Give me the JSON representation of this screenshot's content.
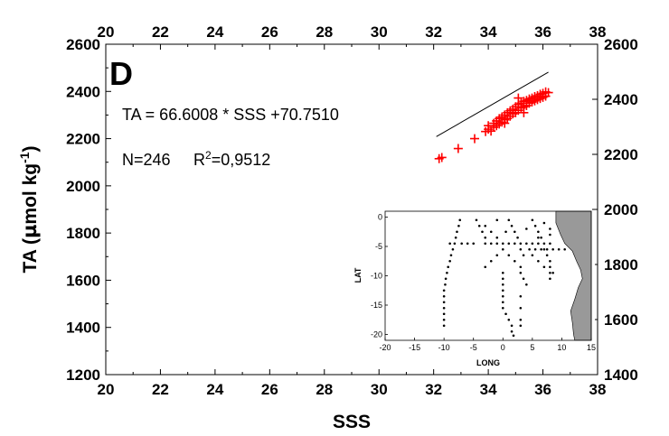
{
  "chart_data": [
    {
      "type": "scatter",
      "panel_label": "D",
      "xlabel": "SSS",
      "ylabel": "TA (µmol kg-1)",
      "ylabel_main": "TA (",
      "ylabel_mu": "µ",
      "ylabel_unit": "mol kg",
      "ylabel_exp": "-1",
      "ylabel_close": ")",
      "xlim": [
        20,
        38
      ],
      "ylim": [
        1200,
        2600
      ],
      "xticks": [
        "20",
        "22",
        "24",
        "26",
        "28",
        "30",
        "32",
        "34",
        "36",
        "38"
      ],
      "yticks_left": [
        "1200",
        "1400",
        "1600",
        "1800",
        "2000",
        "2200",
        "2400",
        "2600"
      ],
      "yticks_right": [
        "1400",
        "1600",
        "1800",
        "2000",
        "2200",
        "2400",
        "2600"
      ],
      "annotations": {
        "equation": "TA = 66.6008 * SSS +70.7510",
        "n_label": "N=246",
        "r2_prefix": "R",
        "r2_exp": "2",
        "r2_value": "=0,9512"
      },
      "regression": {
        "slope": 66.6008,
        "intercept": 70.751,
        "x_range": [
          32.1,
          36.2
        ]
      },
      "marker_color": "#ff0000",
      "line_color": "#000000",
      "series": [
        {
          "marker": "plus",
          "points": [
            [
              32.2,
              2115
            ],
            [
              32.3,
              2120
            ],
            [
              32.9,
              2158
            ],
            [
              33.5,
              2200
            ],
            [
              33.9,
              2230
            ],
            [
              34.0,
              2240
            ],
            [
              34.0,
              2255
            ],
            [
              34.1,
              2232
            ],
            [
              34.2,
              2248
            ],
            [
              34.2,
              2265
            ],
            [
              34.3,
              2255
            ],
            [
              34.3,
              2275
            ],
            [
              34.4,
              2262
            ],
            [
              34.4,
              2285
            ],
            [
              34.5,
              2270
            ],
            [
              34.5,
              2292
            ],
            [
              34.6,
              2280
            ],
            [
              34.6,
              2300
            ],
            [
              34.7,
              2285
            ],
            [
              34.7,
              2310
            ],
            [
              34.8,
              2295
            ],
            [
              34.8,
              2318
            ],
            [
              34.9,
              2305
            ],
            [
              34.9,
              2325
            ],
            [
              35.0,
              2310
            ],
            [
              35.0,
              2335
            ],
            [
              35.1,
              2320
            ],
            [
              35.1,
              2345
            ],
            [
              35.2,
              2330
            ],
            [
              35.2,
              2350
            ],
            [
              35.3,
              2335
            ],
            [
              35.3,
              2358
            ],
            [
              35.4,
              2340
            ],
            [
              35.4,
              2362
            ],
            [
              35.5,
              2350
            ],
            [
              35.5,
              2368
            ],
            [
              35.6,
              2355
            ],
            [
              35.6,
              2372
            ],
            [
              35.7,
              2360
            ],
            [
              35.7,
              2378
            ],
            [
              35.8,
              2365
            ],
            [
              35.8,
              2382
            ],
            [
              35.9,
              2370
            ],
            [
              35.9,
              2388
            ],
            [
              36.0,
              2375
            ],
            [
              36.0,
              2392
            ],
            [
              36.1,
              2380
            ],
            [
              36.1,
              2398
            ],
            [
              35.1,
              2372
            ],
            [
              36.2,
              2395
            ],
            [
              34.6,
              2265
            ],
            [
              35.3,
              2310
            ]
          ]
        }
      ]
    },
    {
      "type": "scatter",
      "xlabel": "LONG",
      "ylabel": "LAT",
      "xlim": [
        -20,
        15
      ],
      "ylim": [
        -21,
        1
      ],
      "xticks": [
        "-20",
        "-15",
        "-10",
        "-5",
        "0",
        "5",
        "10",
        "15"
      ],
      "yticks": [
        "0",
        "-5",
        "-10",
        "-15",
        "-20"
      ],
      "land_color": "#999999",
      "coastline": [
        [
          9,
          0.5
        ],
        [
          9,
          -1
        ],
        [
          9.8,
          -3
        ],
        [
          10.5,
          -4.5
        ],
        [
          11.8,
          -5.8
        ],
        [
          12.5,
          -7.5
        ],
        [
          13.2,
          -9
        ],
        [
          13.5,
          -10.5
        ],
        [
          12.8,
          -12
        ],
        [
          12.2,
          -14
        ],
        [
          11.5,
          -16
        ],
        [
          11.8,
          -18
        ],
        [
          12,
          -20
        ],
        [
          12.2,
          -21
        ]
      ],
      "stations": [
        [
          -10,
          -18.5
        ],
        [
          -10,
          -17.5
        ],
        [
          -10,
          -16.5
        ],
        [
          -10,
          -15.5
        ],
        [
          -10,
          -14.5
        ],
        [
          -10,
          -13.5
        ],
        [
          -10,
          -12.5
        ],
        [
          -9.8,
          -11.5
        ],
        [
          -9.7,
          -10.5
        ],
        [
          -9.5,
          -9.5
        ],
        [
          -9.3,
          -8.5
        ],
        [
          -9,
          -7.5
        ],
        [
          -8.8,
          -6.5
        ],
        [
          -8.5,
          -5.5
        ],
        [
          -8.2,
          -4.5
        ],
        [
          -8,
          -3.5
        ],
        [
          -7.8,
          -2.5
        ],
        [
          -7.5,
          -1.5
        ],
        [
          -7.3,
          -0.5
        ],
        [
          -9,
          -4.5
        ],
        [
          -7,
          -4.5
        ],
        [
          -6,
          -4.5
        ],
        [
          -5,
          -4.5
        ],
        [
          -3,
          -4.5
        ],
        [
          -2,
          -4.5
        ],
        [
          -1,
          -4.5
        ],
        [
          0,
          -4.5
        ],
        [
          1,
          -4.5
        ],
        [
          2,
          -4.5
        ],
        [
          3,
          -4.5
        ],
        [
          4,
          -4.5
        ],
        [
          5,
          -4.5
        ],
        [
          6,
          -4.5
        ],
        [
          7,
          -4.5
        ],
        [
          8,
          -4.5
        ],
        [
          -4.5,
          -0.5
        ],
        [
          -4,
          -1.5
        ],
        [
          -3.5,
          -2.5
        ],
        [
          -3,
          -3.5
        ],
        [
          -3,
          -1.5
        ],
        [
          -2,
          -2.5
        ],
        [
          -1,
          -3.5
        ],
        [
          0,
          -5.5
        ],
        [
          1,
          -6.5
        ],
        [
          2,
          -7.5
        ],
        [
          -1,
          -6.5
        ],
        [
          -2,
          -7.5
        ],
        [
          -3,
          -8.5
        ],
        [
          0,
          -9.5
        ],
        [
          0,
          -10.5
        ],
        [
          0,
          -11.5
        ],
        [
          0,
          -12.5
        ],
        [
          0,
          -13.5
        ],
        [
          0,
          -14.5
        ],
        [
          0,
          -15.5
        ],
        [
          0.5,
          -16.5
        ],
        [
          1,
          -17.5
        ],
        [
          1.5,
          -18.5
        ],
        [
          1.5,
          -19.5
        ],
        [
          1.8,
          -20.2
        ],
        [
          1,
          -0.5
        ],
        [
          1.5,
          -1.5
        ],
        [
          2,
          -2.5
        ],
        [
          2.5,
          -3.5
        ],
        [
          3,
          -5.5
        ],
        [
          3.5,
          -6.5
        ],
        [
          3,
          -8.5
        ],
        [
          3,
          -9.5
        ],
        [
          3.5,
          -10.5
        ],
        [
          4,
          -11.5
        ],
        [
          5,
          -0.5
        ],
        [
          5.5,
          -1.5
        ],
        [
          6,
          -2.5
        ],
        [
          6.5,
          -3.5
        ],
        [
          7,
          -5.5
        ],
        [
          7.5,
          -6.5
        ],
        [
          8,
          -7.5
        ],
        [
          8,
          -8.5
        ],
        [
          8,
          -9.5
        ],
        [
          8,
          -10.5
        ],
        [
          4.5,
          -5.5
        ],
        [
          5.5,
          -5.5
        ],
        [
          6.5,
          -5.5
        ],
        [
          7.5,
          -5.5
        ],
        [
          8.5,
          -5.5
        ],
        [
          9.5,
          -5.5
        ],
        [
          10.5,
          -5.5
        ],
        [
          5,
          -6.5
        ],
        [
          6,
          -7.5
        ],
        [
          7,
          -8.5
        ],
        [
          8.5,
          -9.5
        ],
        [
          3,
          -13.5
        ],
        [
          3,
          -15.5
        ],
        [
          3,
          -17.5
        ],
        [
          3,
          -18.5
        ],
        [
          -1,
          -0.5
        ],
        [
          0.5,
          -2.5
        ],
        [
          4,
          -2
        ],
        [
          7,
          -1
        ],
        [
          8,
          -2
        ],
        [
          8,
          -3
        ],
        [
          6,
          -3.5
        ]
      ]
    }
  ]
}
